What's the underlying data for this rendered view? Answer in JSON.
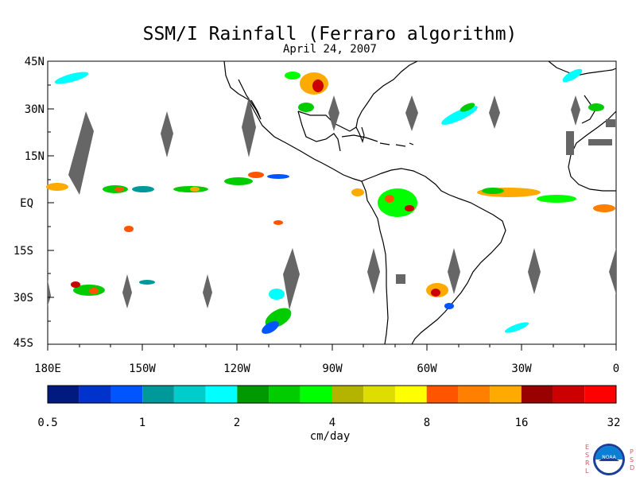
{
  "title": "SSM/I Rainfall (Ferraro algorithm)",
  "date": "April 24, 2007",
  "units": "cm/day",
  "lat_labels": [
    "45N",
    "30N",
    "15N",
    "EQ",
    "15S",
    "30S",
    "45S"
  ],
  "lon_labels": [
    "180E",
    "150W",
    "120W",
    "90W",
    "60W",
    "30W",
    "0"
  ],
  "colorbar": {
    "tick_labels": [
      "0.5",
      "1",
      "2",
      "4",
      "8",
      "16",
      "32"
    ],
    "colors": [
      "#001a80",
      "#0033cc",
      "#0055ff",
      "#009999",
      "#00cccc",
      "#00ffff",
      "#009900",
      "#00cc00",
      "#00ff00",
      "#b3b300",
      "#dddd00",
      "#ffff00",
      "#ff5500",
      "#ff8000",
      "#ffaa00",
      "#990000",
      "#cc0000",
      "#ff0000"
    ]
  },
  "logo": {
    "left_letters": "ESRL",
    "right_letters": "PSD",
    "center_text": "NOAA"
  },
  "colors": {
    "no_data_gray": "#666666",
    "coast": "#000000"
  }
}
